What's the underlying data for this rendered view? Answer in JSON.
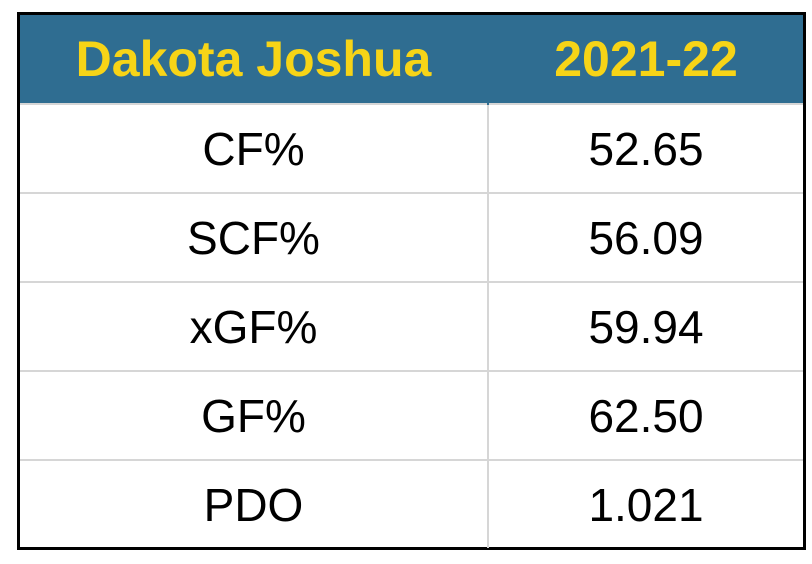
{
  "table": {
    "header": [
      "Dakota Joshua",
      "2021-22"
    ],
    "rows": [
      [
        "CF%",
        "52.65"
      ],
      [
        "SCF%",
        "56.09"
      ],
      [
        "xGF%",
        "59.94"
      ],
      [
        "GF%",
        "62.50"
      ],
      [
        "PDO",
        "1.021"
      ]
    ]
  }
}
